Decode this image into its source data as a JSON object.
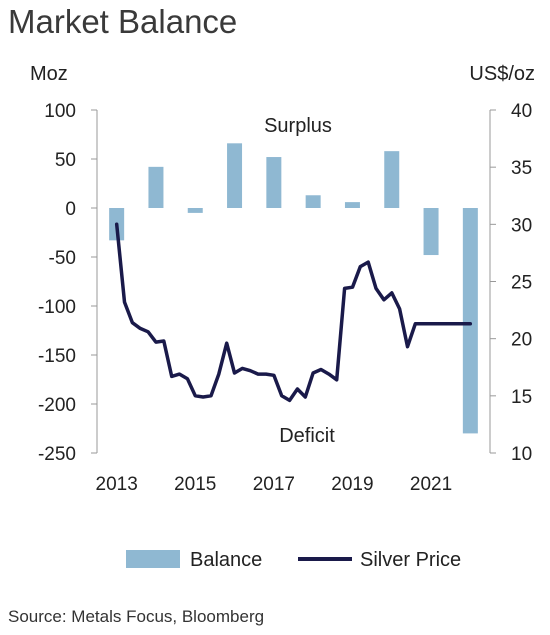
{
  "chart_data": {
    "type": "bar+line",
    "title": "Market Balance",
    "left_axis": {
      "unit": "Moz",
      "ticks": [
        100,
        50,
        0,
        -50,
        -100,
        -150,
        -200,
        -250
      ],
      "range": [
        -250,
        100
      ]
    },
    "right_axis": {
      "unit": "US$/oz",
      "ticks": [
        40,
        35,
        30,
        25,
        20,
        15,
        10
      ],
      "range": [
        10,
        40
      ]
    },
    "x_axis": {
      "ticks": [
        "2013",
        "2015",
        "2017",
        "2019",
        "2021"
      ],
      "range": [
        2012.5,
        2022.5
      ]
    },
    "annotations": {
      "surplus": "Surplus",
      "deficit": "Deficit"
    },
    "series": [
      {
        "name": "Balance",
        "type": "bar",
        "axis": "left",
        "color": "#8fb8d2",
        "x": [
          2013,
          2014,
          2015,
          2016,
          2017,
          2018,
          2019,
          2020,
          2021,
          2022
        ],
        "values": [
          -33,
          42,
          -5,
          66,
          52,
          13,
          6,
          58,
          -48,
          -230
        ]
      },
      {
        "name": "Silver Price",
        "type": "line",
        "axis": "right",
        "color": "#1a1a4a",
        "x": [
          2013.0,
          2013.2,
          2013.4,
          2013.6,
          2013.8,
          2014.0,
          2014.2,
          2014.4,
          2014.6,
          2014.8,
          2015.0,
          2015.2,
          2015.4,
          2015.6,
          2015.8,
          2016.0,
          2016.2,
          2016.4,
          2016.6,
          2016.8,
          2017.0,
          2017.2,
          2017.4,
          2017.6,
          2017.8,
          2018.0,
          2018.2,
          2018.4,
          2018.6,
          2018.8,
          2019.0,
          2019.2,
          2019.4,
          2019.6,
          2019.8,
          2020.0,
          2020.2,
          2020.4,
          2020.6,
          2020.8,
          2021.0,
          2021.2,
          2021.4,
          2021.6,
          2021.8,
          2022.0
        ],
        "values": [
          30.0,
          23.2,
          21.4,
          20.9,
          20.6,
          19.7,
          19.8,
          16.7,
          16.9,
          16.5,
          15.0,
          14.9,
          15.0,
          16.9,
          19.6,
          17.0,
          17.4,
          17.2,
          16.9,
          16.9,
          16.8,
          15.0,
          14.6,
          15.6,
          14.9,
          17.0,
          17.3,
          16.9,
          16.4,
          24.4,
          24.5,
          26.3,
          26.7,
          24.4,
          23.4,
          24.0,
          22.6,
          19.3,
          21.3,
          21.3,
          21.3,
          21.3,
          21.3,
          21.3,
          21.3,
          21.3
        ]
      }
    ],
    "legend": {
      "position": "bottom",
      "items": [
        "Balance",
        "Silver Price"
      ]
    },
    "source": "Source: Metals Focus, Bloomberg"
  }
}
